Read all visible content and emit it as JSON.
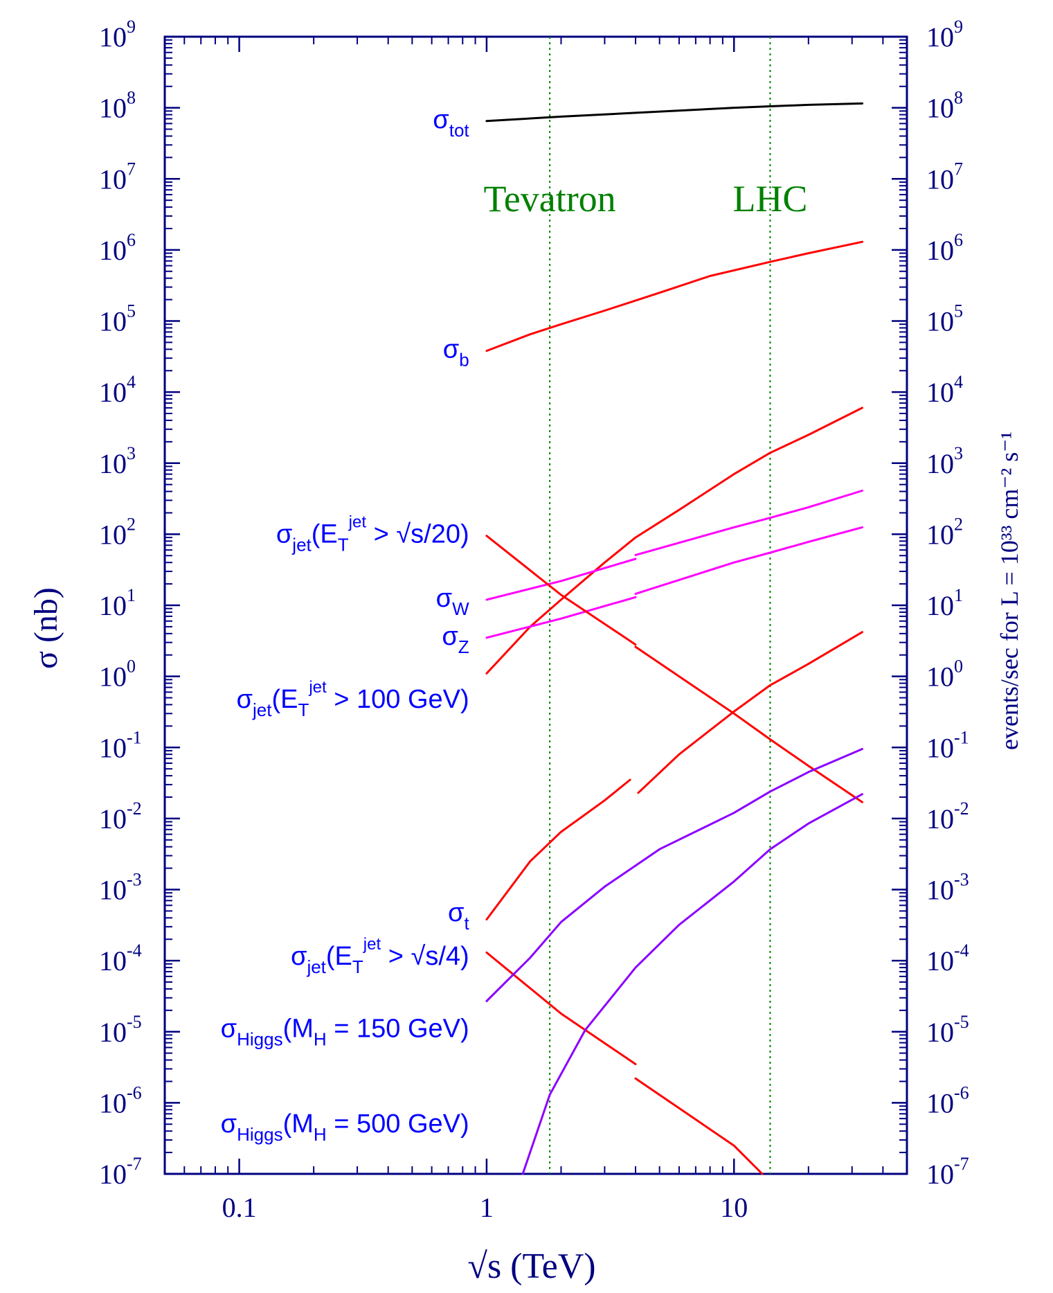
{
  "chart_data": {
    "type": "line",
    "xlabel": "√s   (TeV)",
    "ylabel_left": "σ  (nb)",
    "ylabel_right": "events/sec  for  L = 10³³ cm⁻² s⁻¹",
    "x_scale": "log",
    "y_scale": "log",
    "xlim": [
      0.05,
      50
    ],
    "ylim": [
      1e-07,
      1000000000.0
    ],
    "x_ticks": [
      {
        "v": 0.1,
        "label": "0.1"
      },
      {
        "v": 1,
        "label": "1"
      },
      {
        "v": 10,
        "label": "10"
      }
    ],
    "y_ticks": [
      {
        "e": 9,
        "label": "9"
      },
      {
        "e": 8,
        "label": "8"
      },
      {
        "e": 7,
        "label": "7"
      },
      {
        "e": 6,
        "label": "6"
      },
      {
        "e": 5,
        "label": "5"
      },
      {
        "e": 4,
        "label": "4"
      },
      {
        "e": 3,
        "label": "3"
      },
      {
        "e": 2,
        "label": "2"
      },
      {
        "e": 1,
        "label": "1"
      },
      {
        "e": 0,
        "label": "0"
      },
      {
        "e": -1,
        "label": "-1"
      },
      {
        "e": -2,
        "label": "-2"
      },
      {
        "e": -3,
        "label": "-3"
      },
      {
        "e": -4,
        "label": "-4"
      },
      {
        "e": -5,
        "label": "-5"
      },
      {
        "e": -6,
        "label": "-6"
      },
      {
        "e": -7,
        "label": "-7"
      }
    ],
    "y_tick_base": "10",
    "grid": false,
    "vlines": [
      {
        "x": 1.8,
        "label": "Tevatron"
      },
      {
        "x": 14,
        "label": "LHC"
      }
    ],
    "series": [
      {
        "color": "#000000",
        "segments": [
          [
            [
              1,
              65000000.0
            ],
            [
              2,
              75000000.0
            ],
            [
              4,
              85000000.0
            ],
            [
              10,
              100000000.0
            ],
            [
              14,
              105000000.0
            ],
            [
              20,
              110000000.0
            ],
            [
              33,
              115000000.0
            ]
          ]
        ]
      },
      {
        "color": "#ff0000",
        "segments": [
          [
            [
              1,
              38000.0
            ],
            [
              1.5,
              65000.0
            ],
            [
              2,
              90000.0
            ],
            [
              3,
              140000.0
            ],
            [
              5,
              250000.0
            ],
            [
              8,
              430000.0
            ],
            [
              14,
              680000.0
            ],
            [
              20,
              900000.0
            ],
            [
              33,
              1300000.0
            ]
          ]
        ]
      },
      {
        "color": "#ff0000",
        "segments": [
          [
            [
              1,
              1.1
            ],
            [
              1.5,
              5
            ],
            [
              2,
              12
            ],
            [
              3,
              40
            ],
            [
              4,
              90
            ],
            [
              6,
              220
            ],
            [
              10,
              700
            ],
            [
              14,
              1400
            ],
            [
              20,
              2500
            ],
            [
              33,
              6000
            ]
          ]
        ]
      },
      {
        "color": "#ff00ff",
        "segments": [
          [
            [
              1,
              12
            ],
            [
              2,
              22
            ],
            [
              4,
              45
            ]
          ],
          [
            [
              4,
              51
            ],
            [
              10,
              125
            ],
            [
              14,
              170
            ],
            [
              20,
              240
            ],
            [
              33,
              410
            ]
          ]
        ]
      },
      {
        "color": "#ff00ff",
        "segments": [
          [
            [
              1,
              3.5
            ],
            [
              2,
              6.5
            ],
            [
              4,
              13
            ]
          ],
          [
            [
              4,
              14.5
            ],
            [
              10,
              40
            ],
            [
              14,
              55
            ],
            [
              20,
              78
            ],
            [
              33,
              125
            ]
          ]
        ]
      },
      {
        "color": "#ff0000",
        "segments": [
          [
            [
              1,
              95
            ],
            [
              2,
              14
            ],
            [
              4,
              2.8
            ]
          ],
          [
            [
              4,
              2.6
            ],
            [
              10,
              0.3
            ],
            [
              14,
              0.13
            ],
            [
              20,
              0.055
            ],
            [
              33,
              0.017
            ]
          ]
        ]
      },
      {
        "color": "#ff0000",
        "segments": [
          [
            [
              1,
              0.00038
            ],
            [
              1.5,
              0.0025
            ],
            [
              2,
              0.0065
            ],
            [
              3,
              0.018
            ],
            [
              3.8,
              0.035
            ]
          ],
          [
            [
              4.1,
              0.023
            ],
            [
              6,
              0.08
            ],
            [
              10,
              0.32
            ],
            [
              14,
              0.75
            ],
            [
              20,
              1.5
            ],
            [
              33,
              4.2
            ]
          ]
        ]
      },
      {
        "color": "#ff0000",
        "segments": [
          [
            [
              1,
              0.00013
            ],
            [
              2,
              1.8e-05
            ],
            [
              4,
              3.5e-06
            ]
          ],
          [
            [
              4,
              2.2e-06
            ],
            [
              10,
              2.5e-07
            ],
            [
              13,
              1e-07
            ]
          ]
        ]
      },
      {
        "color": "#8b00ff",
        "segments": [
          [
            [
              1,
              2.7e-05
            ],
            [
              1.5,
              0.00011
            ],
            [
              2,
              0.00035
            ],
            [
              3,
              0.0011
            ],
            [
              5,
              0.0037
            ],
            [
              10,
              0.012
            ],
            [
              14,
              0.024
            ],
            [
              20,
              0.045
            ],
            [
              33,
              0.095
            ]
          ]
        ]
      },
      {
        "color": "#8b00ff",
        "segments": [
          [
            [
              1.4,
              1e-07
            ],
            [
              1.8,
              1.3e-06
            ],
            [
              2.5,
              1.05e-05
            ],
            [
              4,
              8e-05
            ],
            [
              6,
              0.00032
            ],
            [
              10,
              0.0013
            ],
            [
              14,
              0.0037
            ],
            [
              20,
              0.0085
            ],
            [
              33,
              0.022
            ]
          ]
        ]
      }
    ],
    "labels": [
      {
        "id": "sigma-tot",
        "main": "σ",
        "sub": "tot",
        "x": 0.85,
        "y": 65000000.0
      },
      {
        "id": "sigma-b",
        "main": "σ",
        "sub": "b",
        "x": 0.85,
        "y": 38000.0
      },
      {
        "id": "sigma-jet-20",
        "main": "σ",
        "sub": "jet",
        "after": "(E",
        "sub2": "T",
        "sup": "jet",
        "tail": " > √s/20)",
        "x": 0.85,
        "y": 95
      },
      {
        "id": "sigma-w",
        "main": "σ",
        "sub": "W",
        "x": 0.85,
        "y": 12
      },
      {
        "id": "sigma-z",
        "main": "σ",
        "sub": "Z",
        "x": 0.85,
        "y": 3.5
      },
      {
        "id": "sigma-jet-100",
        "main": "σ",
        "sub": "jet",
        "after": "(E",
        "sub2": "T",
        "sup": "jet",
        "tail": " > 100 GeV)",
        "x": 0.85,
        "y": 0.45
      },
      {
        "id": "sigma-t",
        "main": "σ",
        "sub": "t",
        "x": 0.85,
        "y": 0.00045
      },
      {
        "id": "sigma-jet-4",
        "main": "σ",
        "sub": "jet",
        "after": "(E",
        "sub2": "T",
        "sup": "jet",
        "tail": " > √s/4)",
        "x": 0.85,
        "y": 0.00011
      },
      {
        "id": "sigma-higgs-150",
        "main": "σ",
        "sub": "Higgs",
        "after": "(M",
        "sub2": "H",
        "tail": " = 150 GeV)",
        "x": 0.85,
        "y": 1.05e-05
      },
      {
        "id": "sigma-higgs-500",
        "main": "σ",
        "sub": "Higgs",
        "after": "(M",
        "sub2": "H",
        "tail": " = 500 GeV)",
        "x": 0.85,
        "y": 4.8e-07
      }
    ]
  }
}
